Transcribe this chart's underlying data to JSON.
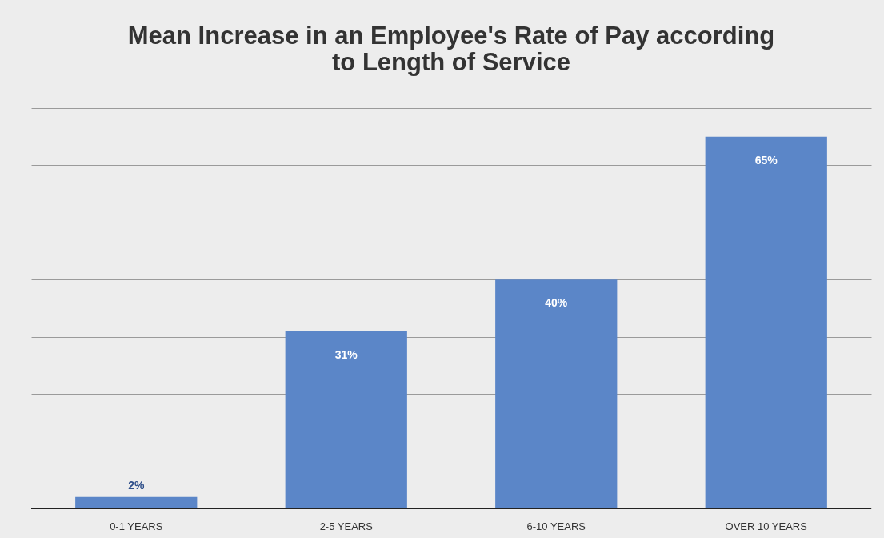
{
  "chart_data": {
    "type": "bar",
    "title": [
      "Mean Increase in an Employee's Rate of Pay according",
      "to Length of Service"
    ],
    "categories": [
      "0-1 YEARS",
      "2-5 YEARS",
      "6-10 YEARS",
      "OVER 10 YEARS"
    ],
    "values": [
      2,
      31,
      40,
      65
    ],
    "value_labels": [
      "2%",
      "31%",
      "40%",
      "65%"
    ],
    "color": "#5b86c8",
    "ylim": [
      0,
      70
    ],
    "yticks": [
      {
        "value": 0,
        "label": null
      },
      {
        "value": 10,
        "label": null
      },
      {
        "value": 20,
        "label": null
      },
      {
        "value": 30,
        "label": null
      },
      {
        "value": 40,
        "label": null
      },
      {
        "value": 50,
        "label": null
      },
      {
        "value": 60,
        "label": null
      },
      {
        "value": 70,
        "label": null
      }
    ],
    "grid": "y",
    "tick_labels": "x"
  }
}
